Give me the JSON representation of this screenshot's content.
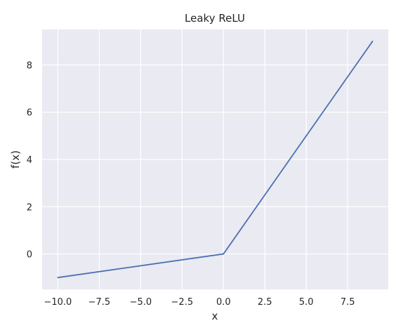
{
  "chart_data": {
    "type": "line",
    "title": "Leaky ReLU",
    "xlabel": "x",
    "ylabel": "f(x)",
    "xlim": [
      -10.95,
      9.95
    ],
    "ylim": [
      -1.5,
      9.5
    ],
    "xticks": [
      -10.0,
      -7.5,
      -5.0,
      -2.5,
      0.0,
      2.5,
      5.0,
      7.5
    ],
    "xtick_labels": [
      "−10.0",
      "−7.5",
      "−5.0",
      "−2.5",
      "0.0",
      "2.5",
      "5.0",
      "7.5"
    ],
    "yticks": [
      0,
      2,
      4,
      6,
      8
    ],
    "ytick_labels": [
      "0",
      "2",
      "4",
      "6",
      "8"
    ],
    "grid": true,
    "series": [
      {
        "x": [
          -10,
          0,
          9
        ],
        "y": [
          -1,
          0,
          9
        ]
      }
    ],
    "colors": {
      "plot_background": "#eaeaf2",
      "grid": "#ffffff",
      "line": "#4c72b0",
      "text": "#262626"
    }
  }
}
